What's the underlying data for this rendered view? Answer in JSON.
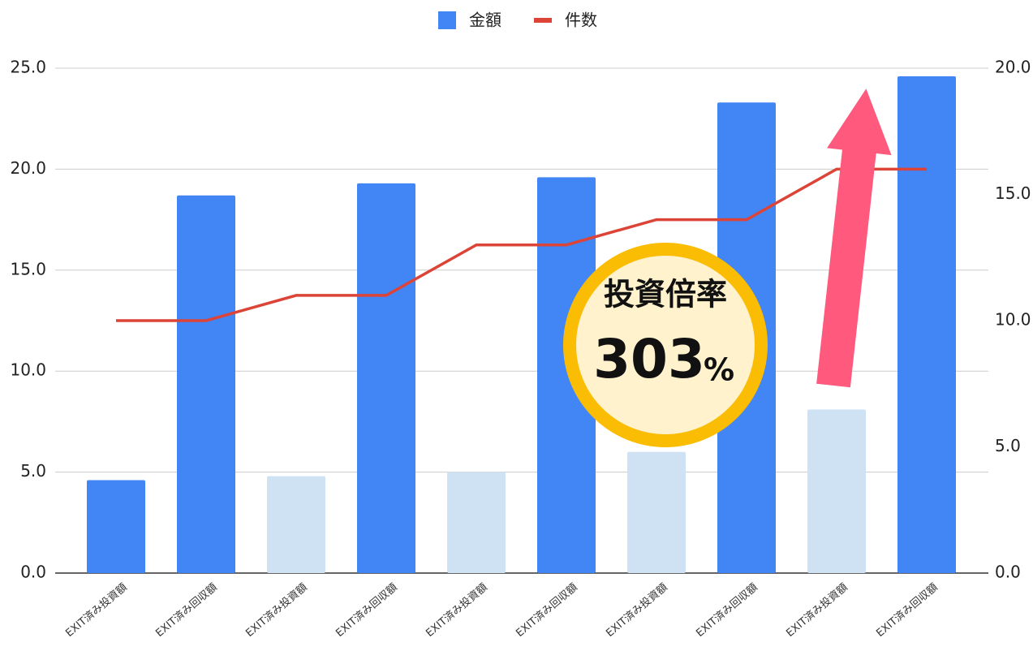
{
  "chart_data": {
    "type": "bar_line",
    "categories": [
      "EXIT済み投資額",
      "EXIT済み回収額",
      "EXIT済み投資額",
      "EXIT済み回収額",
      "EXIT済み投資額",
      "EXIT済み回収額",
      "EXIT済み投資額",
      "EXIT済み回収額",
      "EXIT済み投資額",
      "EXIT済み回収額"
    ],
    "series": [
      {
        "name": "金額",
        "type": "bar",
        "color": "#4285f4",
        "colors": [
          "#4285f4",
          "#4285f4",
          "#cfe2f3",
          "#4285f4",
          "#cfe2f3",
          "#4285f4",
          "#cfe2f3",
          "#4285f4",
          "#cfe2f3",
          "#4285f4"
        ],
        "values": [
          4.6,
          18.7,
          4.8,
          19.3,
          5.0,
          19.6,
          6.0,
          23.3,
          8.1,
          24.6
        ]
      },
      {
        "name": "件数",
        "type": "line",
        "axis": "y2",
        "color": "#db4437",
        "values": [
          10,
          10,
          11,
          11,
          13,
          13,
          14,
          14,
          16,
          16
        ]
      }
    ],
    "ylim": [
      0,
      25
    ],
    "yticks": [
      {
        "value": 0,
        "label": "0.0"
      },
      {
        "value": 5,
        "label": "5.0"
      },
      {
        "value": 10,
        "label": "10.0"
      },
      {
        "value": 15,
        "label": "15.0"
      },
      {
        "value": 20,
        "label": "20.0"
      },
      {
        "value": 25,
        "label": "25.0"
      }
    ],
    "y2lim": [
      0,
      20
    ],
    "y2ticks": [
      {
        "value": 0,
        "label": "0.0"
      },
      {
        "value": 5,
        "label": "5.0"
      },
      {
        "value": 10,
        "label": "10.0"
      },
      {
        "value": 15,
        "label": "15.0"
      },
      {
        "value": 20,
        "label": "20.0"
      }
    ],
    "grid": true,
    "legend": "top",
    "annotations": {
      "label": "投資倍率",
      "value": "303",
      "unit": "%"
    }
  }
}
